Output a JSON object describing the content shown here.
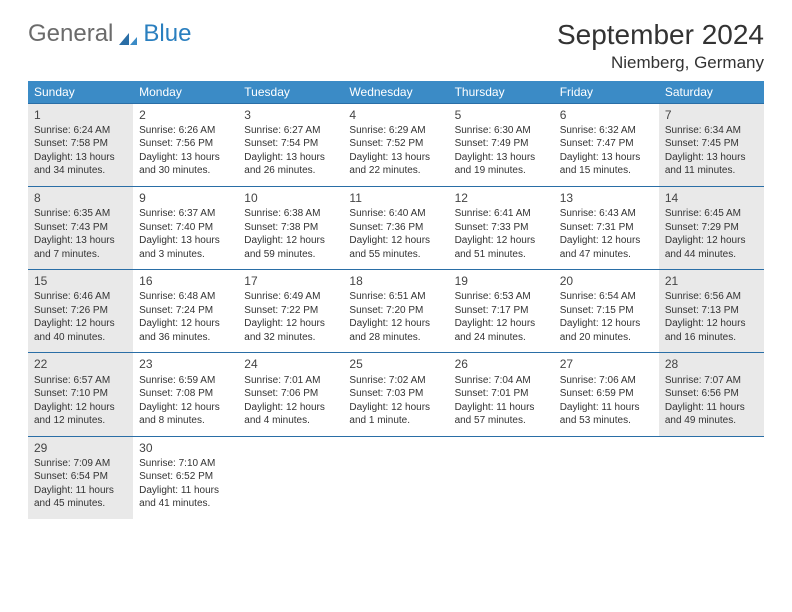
{
  "logo": {
    "part1": "General",
    "part2": "Blue"
  },
  "title": "September 2024",
  "location": "Niemberg, Germany",
  "weekdays": [
    "Sunday",
    "Monday",
    "Tuesday",
    "Wednesday",
    "Thursday",
    "Friday",
    "Saturday"
  ],
  "colors": {
    "header_bg": "#3b8bc6",
    "header_text": "#ffffff",
    "row_border": "#2a6ea6",
    "shaded_bg": "#e9e9e9",
    "text": "#333333"
  },
  "weeks": [
    [
      {
        "num": "1",
        "shaded": true,
        "sunrise": "Sunrise: 6:24 AM",
        "sunset": "Sunset: 7:58 PM",
        "daylight1": "Daylight: 13 hours",
        "daylight2": "and 34 minutes."
      },
      {
        "num": "2",
        "shaded": false,
        "sunrise": "Sunrise: 6:26 AM",
        "sunset": "Sunset: 7:56 PM",
        "daylight1": "Daylight: 13 hours",
        "daylight2": "and 30 minutes."
      },
      {
        "num": "3",
        "shaded": false,
        "sunrise": "Sunrise: 6:27 AM",
        "sunset": "Sunset: 7:54 PM",
        "daylight1": "Daylight: 13 hours",
        "daylight2": "and 26 minutes."
      },
      {
        "num": "4",
        "shaded": false,
        "sunrise": "Sunrise: 6:29 AM",
        "sunset": "Sunset: 7:52 PM",
        "daylight1": "Daylight: 13 hours",
        "daylight2": "and 22 minutes."
      },
      {
        "num": "5",
        "shaded": false,
        "sunrise": "Sunrise: 6:30 AM",
        "sunset": "Sunset: 7:49 PM",
        "daylight1": "Daylight: 13 hours",
        "daylight2": "and 19 minutes."
      },
      {
        "num": "6",
        "shaded": false,
        "sunrise": "Sunrise: 6:32 AM",
        "sunset": "Sunset: 7:47 PM",
        "daylight1": "Daylight: 13 hours",
        "daylight2": "and 15 minutes."
      },
      {
        "num": "7",
        "shaded": true,
        "sunrise": "Sunrise: 6:34 AM",
        "sunset": "Sunset: 7:45 PM",
        "daylight1": "Daylight: 13 hours",
        "daylight2": "and 11 minutes."
      }
    ],
    [
      {
        "num": "8",
        "shaded": true,
        "sunrise": "Sunrise: 6:35 AM",
        "sunset": "Sunset: 7:43 PM",
        "daylight1": "Daylight: 13 hours",
        "daylight2": "and 7 minutes."
      },
      {
        "num": "9",
        "shaded": false,
        "sunrise": "Sunrise: 6:37 AM",
        "sunset": "Sunset: 7:40 PM",
        "daylight1": "Daylight: 13 hours",
        "daylight2": "and 3 minutes."
      },
      {
        "num": "10",
        "shaded": false,
        "sunrise": "Sunrise: 6:38 AM",
        "sunset": "Sunset: 7:38 PM",
        "daylight1": "Daylight: 12 hours",
        "daylight2": "and 59 minutes."
      },
      {
        "num": "11",
        "shaded": false,
        "sunrise": "Sunrise: 6:40 AM",
        "sunset": "Sunset: 7:36 PM",
        "daylight1": "Daylight: 12 hours",
        "daylight2": "and 55 minutes."
      },
      {
        "num": "12",
        "shaded": false,
        "sunrise": "Sunrise: 6:41 AM",
        "sunset": "Sunset: 7:33 PM",
        "daylight1": "Daylight: 12 hours",
        "daylight2": "and 51 minutes."
      },
      {
        "num": "13",
        "shaded": false,
        "sunrise": "Sunrise: 6:43 AM",
        "sunset": "Sunset: 7:31 PM",
        "daylight1": "Daylight: 12 hours",
        "daylight2": "and 47 minutes."
      },
      {
        "num": "14",
        "shaded": true,
        "sunrise": "Sunrise: 6:45 AM",
        "sunset": "Sunset: 7:29 PM",
        "daylight1": "Daylight: 12 hours",
        "daylight2": "and 44 minutes."
      }
    ],
    [
      {
        "num": "15",
        "shaded": true,
        "sunrise": "Sunrise: 6:46 AM",
        "sunset": "Sunset: 7:26 PM",
        "daylight1": "Daylight: 12 hours",
        "daylight2": "and 40 minutes."
      },
      {
        "num": "16",
        "shaded": false,
        "sunrise": "Sunrise: 6:48 AM",
        "sunset": "Sunset: 7:24 PM",
        "daylight1": "Daylight: 12 hours",
        "daylight2": "and 36 minutes."
      },
      {
        "num": "17",
        "shaded": false,
        "sunrise": "Sunrise: 6:49 AM",
        "sunset": "Sunset: 7:22 PM",
        "daylight1": "Daylight: 12 hours",
        "daylight2": "and 32 minutes."
      },
      {
        "num": "18",
        "shaded": false,
        "sunrise": "Sunrise: 6:51 AM",
        "sunset": "Sunset: 7:20 PM",
        "daylight1": "Daylight: 12 hours",
        "daylight2": "and 28 minutes."
      },
      {
        "num": "19",
        "shaded": false,
        "sunrise": "Sunrise: 6:53 AM",
        "sunset": "Sunset: 7:17 PM",
        "daylight1": "Daylight: 12 hours",
        "daylight2": "and 24 minutes."
      },
      {
        "num": "20",
        "shaded": false,
        "sunrise": "Sunrise: 6:54 AM",
        "sunset": "Sunset: 7:15 PM",
        "daylight1": "Daylight: 12 hours",
        "daylight2": "and 20 minutes."
      },
      {
        "num": "21",
        "shaded": true,
        "sunrise": "Sunrise: 6:56 AM",
        "sunset": "Sunset: 7:13 PM",
        "daylight1": "Daylight: 12 hours",
        "daylight2": "and 16 minutes."
      }
    ],
    [
      {
        "num": "22",
        "shaded": true,
        "sunrise": "Sunrise: 6:57 AM",
        "sunset": "Sunset: 7:10 PM",
        "daylight1": "Daylight: 12 hours",
        "daylight2": "and 12 minutes."
      },
      {
        "num": "23",
        "shaded": false,
        "sunrise": "Sunrise: 6:59 AM",
        "sunset": "Sunset: 7:08 PM",
        "daylight1": "Daylight: 12 hours",
        "daylight2": "and 8 minutes."
      },
      {
        "num": "24",
        "shaded": false,
        "sunrise": "Sunrise: 7:01 AM",
        "sunset": "Sunset: 7:06 PM",
        "daylight1": "Daylight: 12 hours",
        "daylight2": "and 4 minutes."
      },
      {
        "num": "25",
        "shaded": false,
        "sunrise": "Sunrise: 7:02 AM",
        "sunset": "Sunset: 7:03 PM",
        "daylight1": "Daylight: 12 hours",
        "daylight2": "and 1 minute."
      },
      {
        "num": "26",
        "shaded": false,
        "sunrise": "Sunrise: 7:04 AM",
        "sunset": "Sunset: 7:01 PM",
        "daylight1": "Daylight: 11 hours",
        "daylight2": "and 57 minutes."
      },
      {
        "num": "27",
        "shaded": false,
        "sunrise": "Sunrise: 7:06 AM",
        "sunset": "Sunset: 6:59 PM",
        "daylight1": "Daylight: 11 hours",
        "daylight2": "and 53 minutes."
      },
      {
        "num": "28",
        "shaded": true,
        "sunrise": "Sunrise: 7:07 AM",
        "sunset": "Sunset: 6:56 PM",
        "daylight1": "Daylight: 11 hours",
        "daylight2": "and 49 minutes."
      }
    ],
    [
      {
        "num": "29",
        "shaded": true,
        "sunrise": "Sunrise: 7:09 AM",
        "sunset": "Sunset: 6:54 PM",
        "daylight1": "Daylight: 11 hours",
        "daylight2": "and 45 minutes."
      },
      {
        "num": "30",
        "shaded": false,
        "sunrise": "Sunrise: 7:10 AM",
        "sunset": "Sunset: 6:52 PM",
        "daylight1": "Daylight: 11 hours",
        "daylight2": "and 41 minutes."
      },
      {
        "empty": true
      },
      {
        "empty": true
      },
      {
        "empty": true
      },
      {
        "empty": true
      },
      {
        "empty": true
      }
    ]
  ]
}
